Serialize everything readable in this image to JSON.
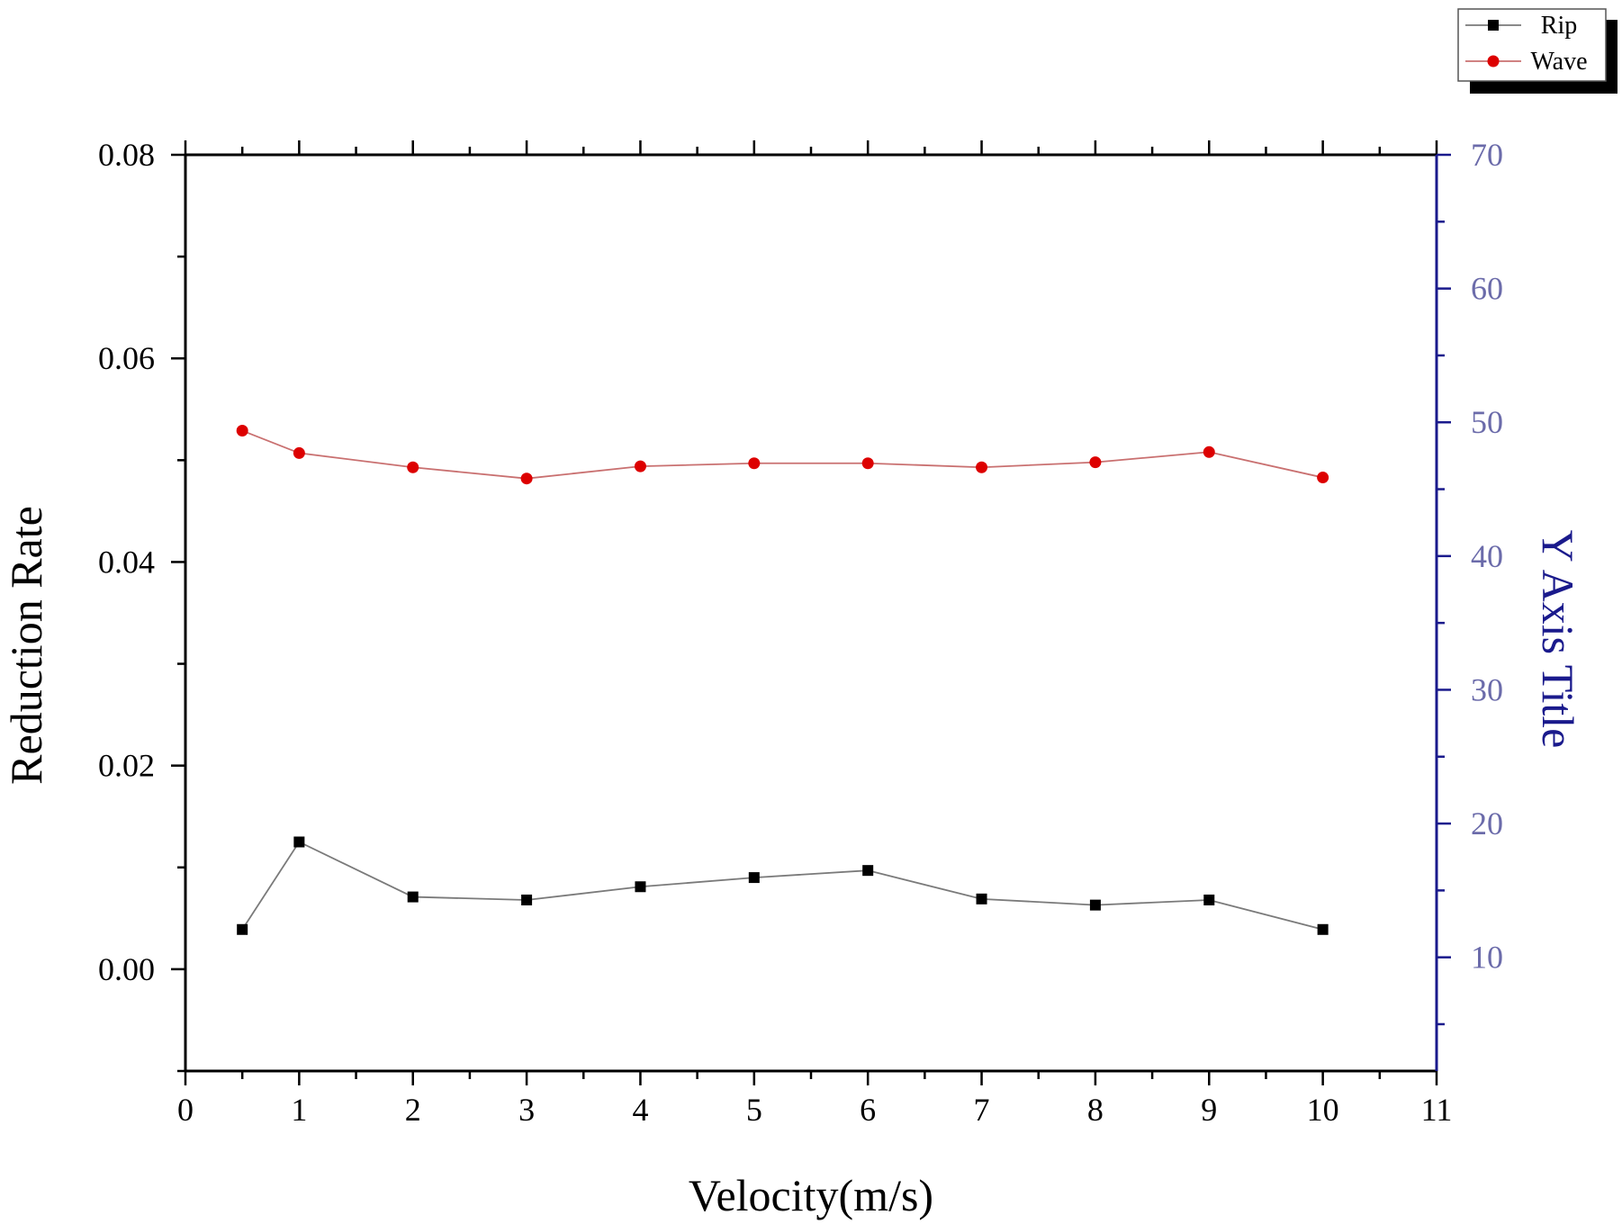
{
  "chart_data": {
    "type": "line",
    "xlabel": "Velocity(m/s)",
    "ylabel": "Reduction Rate",
    "y2label": "Y Axis Title",
    "xlim": [
      0,
      11
    ],
    "ylim": [
      -0.01,
      0.08
    ],
    "y2lim": [
      1.5,
      70
    ],
    "x_ticks": [
      "0",
      "1",
      "2",
      "3",
      "4",
      "5",
      "6",
      "7",
      "8",
      "9",
      "10",
      "11"
    ],
    "y_ticks": [
      "0.00",
      "0.02",
      "0.04",
      "0.06",
      "0.08"
    ],
    "y2_ticks": [
      "10",
      "20",
      "30",
      "40",
      "50",
      "60",
      "70"
    ],
    "legend_position": "top-right",
    "grid": false,
    "colors": {
      "axis": "#000000",
      "right_axis": "#1a1a8c",
      "right_tick_text": "#6b6baa",
      "rip_line": "#7a7a7a",
      "rip_marker": "#000000",
      "wave_line": "#c97070",
      "wave_marker": "#dd0000"
    },
    "x": [
      0.5,
      1,
      2,
      3,
      4,
      5,
      6,
      7,
      8,
      9,
      10
    ],
    "series": [
      {
        "name": "Rip",
        "marker": "square",
        "values": [
          0.0039,
          0.0125,
          0.0071,
          0.0068,
          0.0081,
          0.009,
          0.0097,
          0.0069,
          0.0063,
          0.0068,
          0.0039
        ]
      },
      {
        "name": "Wave",
        "marker": "circle",
        "values": [
          0.0529,
          0.0507,
          0.0493,
          0.0482,
          0.0494,
          0.0497,
          0.0497,
          0.0493,
          0.0498,
          0.0508,
          0.0483
        ]
      }
    ]
  }
}
